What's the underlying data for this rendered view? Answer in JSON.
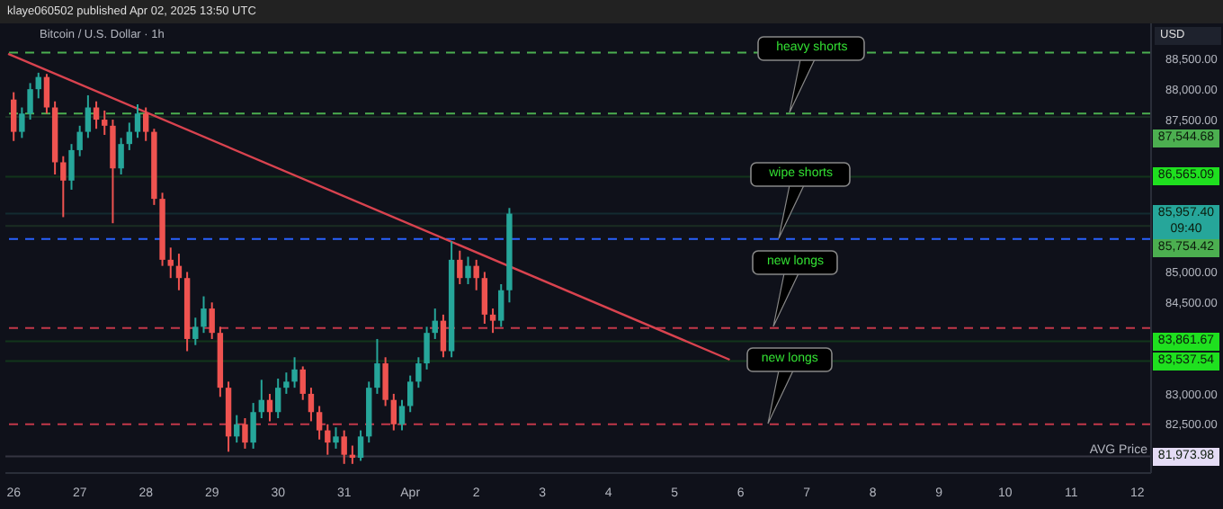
{
  "chart_data": {
    "type": "candlestick",
    "title": "Bitcoin / U.S. Dollar · 1h",
    "subtitle": "klaye060502 published Apr 02, 2025 13:50 UTC",
    "ylabel": "USD",
    "x": [
      "2025-03-26T00:00",
      "2025-03-26T03:00",
      "2025-03-26T06:00",
      "2025-03-26T09:00",
      "2025-03-26T12:00",
      "2025-03-26T15:00",
      "2025-03-26T18:00",
      "2025-03-26T21:00",
      "2025-03-27T00:00",
      "2025-03-27T03:00",
      "2025-03-27T06:00",
      "2025-03-27T09:00",
      "2025-03-27T12:00",
      "2025-03-27T15:00",
      "2025-03-27T18:00",
      "2025-03-27T21:00",
      "2025-03-28T00:00",
      "2025-03-28T03:00",
      "2025-03-28T06:00",
      "2025-03-28T09:00",
      "2025-03-28T12:00",
      "2025-03-28T15:00",
      "2025-03-28T18:00",
      "2025-03-28T21:00",
      "2025-03-29T00:00",
      "2025-03-29T03:00",
      "2025-03-29T06:00",
      "2025-03-29T09:00",
      "2025-03-29T12:00",
      "2025-03-29T15:00",
      "2025-03-29T18:00",
      "2025-03-29T21:00",
      "2025-03-30T00:00",
      "2025-03-30T03:00",
      "2025-03-30T06:00",
      "2025-03-30T09:00",
      "2025-03-30T12:00",
      "2025-03-30T15:00",
      "2025-03-30T18:00",
      "2025-03-30T21:00",
      "2025-03-31T00:00",
      "2025-03-31T03:00",
      "2025-03-31T06:00",
      "2025-03-31T09:00",
      "2025-03-31T12:00",
      "2025-03-31T15:00",
      "2025-03-31T18:00",
      "2025-03-31T21:00",
      "2025-04-01T00:00",
      "2025-04-01T03:00",
      "2025-04-01T06:00",
      "2025-04-01T09:00",
      "2025-04-01T12:00",
      "2025-04-01T15:00",
      "2025-04-01T18:00",
      "2025-04-01T21:00",
      "2025-04-02T00:00",
      "2025-04-02T03:00",
      "2025-04-02T06:00",
      "2025-04-02T09:00",
      "2025-04-02T12:00"
    ],
    "ohlc": [
      [
        87830,
        87950,
        87150,
        87300
      ],
      [
        87300,
        87700,
        87200,
        87600
      ],
      [
        87600,
        88100,
        87500,
        88000
      ],
      [
        88000,
        88270,
        87850,
        88200
      ],
      [
        88200,
        88250,
        87600,
        87700
      ],
      [
        87700,
        87800,
        86600,
        86800
      ],
      [
        86800,
        86900,
        85900,
        86500
      ],
      [
        86500,
        87100,
        86350,
        87000
      ],
      [
        87000,
        87400,
        86900,
        87300
      ],
      [
        87300,
        87900,
        87200,
        87700
      ],
      [
        87700,
        87800,
        87350,
        87500
      ],
      [
        87500,
        87650,
        87250,
        87400
      ],
      [
        87400,
        87500,
        85800,
        86700
      ],
      [
        86700,
        87200,
        86600,
        87100
      ],
      [
        87100,
        87450,
        87000,
        87300
      ],
      [
        87300,
        87750,
        87200,
        87600
      ],
      [
        87600,
        87700,
        87150,
        87300
      ],
      [
        87300,
        87350,
        86100,
        86200
      ],
      [
        86200,
        86300,
        85100,
        85200
      ],
      [
        85200,
        85400,
        84900,
        85100
      ],
      [
        85100,
        85300,
        84700,
        84900
      ],
      [
        84900,
        85000,
        83700,
        83900
      ],
      [
        83900,
        84250,
        83800,
        84100
      ],
      [
        84100,
        84600,
        84000,
        84400
      ],
      [
        84400,
        84500,
        83900,
        84000
      ],
      [
        84000,
        84100,
        82950,
        83100
      ],
      [
        83100,
        83200,
        82050,
        82300
      ],
      [
        82300,
        82650,
        82200,
        82500
      ],
      [
        82500,
        82600,
        82100,
        82200
      ],
      [
        82200,
        82850,
        82100,
        82700
      ],
      [
        82700,
        83230,
        82600,
        82900
      ],
      [
        82900,
        83000,
        82550,
        82700
      ],
      [
        82700,
        83250,
        82600,
        83100
      ],
      [
        83100,
        83350,
        83000,
        83200
      ],
      [
        83200,
        83600,
        83100,
        83400
      ],
      [
        83400,
        83450,
        82900,
        83000
      ],
      [
        83000,
        83100,
        82550,
        82700
      ],
      [
        82700,
        82800,
        82250,
        82400
      ],
      [
        82400,
        82500,
        82000,
        82200
      ],
      [
        82200,
        82450,
        82100,
        82300
      ],
      [
        82300,
        82400,
        81850,
        82000
      ],
      [
        82000,
        82150,
        81850,
        81950
      ],
      [
        81950,
        82400,
        81900,
        82300
      ],
      [
        82300,
        83200,
        82200,
        83100
      ],
      [
        83100,
        83900,
        83000,
        83500
      ],
      [
        83500,
        83600,
        82800,
        82900
      ],
      [
        82900,
        83000,
        82400,
        82500
      ],
      [
        82500,
        82900,
        82400,
        82800
      ],
      [
        82800,
        83300,
        82700,
        83200
      ],
      [
        83200,
        83600,
        83100,
        83500
      ],
      [
        83500,
        84100,
        83400,
        84000
      ],
      [
        84000,
        84400,
        83900,
        84200
      ],
      [
        84200,
        84300,
        83600,
        83700
      ],
      [
        83700,
        85500,
        83600,
        85200
      ],
      [
        85200,
        85350,
        84800,
        84900
      ],
      [
        84900,
        85250,
        84800,
        85100
      ],
      [
        85100,
        85200,
        84700,
        84900
      ],
      [
        84900,
        85000,
        84150,
        84300
      ],
      [
        84300,
        84400,
        84000,
        84200
      ],
      [
        84200,
        84800,
        84100,
        84700
      ],
      [
        84700,
        86050,
        84500,
        85957.4
      ]
    ],
    "series": [
      {
        "type": "line",
        "color": "#d9434f",
        "x": [
          "2025-03-25T22:00",
          "2025-04-05T20:00"
        ],
        "values": [
          88580,
          83560
        ]
      }
    ],
    "xlim": [
      "2025-03-25T21:00",
      "2025-04-12T05:00"
    ],
    "xticks": [
      {
        "value": "2025-03-26T00:00",
        "label": "26"
      },
      {
        "value": "2025-03-27T00:00",
        "label": "27"
      },
      {
        "value": "2025-03-28T00:00",
        "label": "28"
      },
      {
        "value": "2025-03-29T00:00",
        "label": "29"
      },
      {
        "value": "2025-03-30T00:00",
        "label": "30"
      },
      {
        "value": "2025-03-31T00:00",
        "label": "31"
      },
      {
        "value": "2025-04-01T00:00",
        "label": "Apr"
      },
      {
        "value": "2025-04-02T00:00",
        "label": "2"
      },
      {
        "value": "2025-04-03T00:00",
        "label": "3"
      },
      {
        "value": "2025-04-04T00:00",
        "label": "4"
      },
      {
        "value": "2025-04-05T00:00",
        "label": "5"
      },
      {
        "value": "2025-04-06T00:00",
        "label": "6"
      },
      {
        "value": "2025-04-07T00:00",
        "label": "7"
      },
      {
        "value": "2025-04-08T00:00",
        "label": "8"
      },
      {
        "value": "2025-04-09T00:00",
        "label": "9"
      },
      {
        "value": "2025-04-10T00:00",
        "label": "10"
      },
      {
        "value": "2025-04-11T00:00",
        "label": "11"
      },
      {
        "value": "2025-04-12T00:00",
        "label": "12"
      }
    ],
    "ylim": [
      81700,
      89080
    ],
    "yticks": [
      {
        "value": 82500,
        "label": "82,500.00"
      },
      {
        "value": 83000,
        "label": "83,000.00"
      },
      {
        "value": 84500,
        "label": "84,500.00"
      },
      {
        "value": 85000,
        "label": "85,000.00"
      },
      {
        "value": 87500,
        "label": "87,500.00"
      },
      {
        "value": 88000,
        "label": "88,000.00"
      },
      {
        "value": 88500,
        "label": "88,500.00"
      }
    ],
    "ref_lines": [
      {
        "axis": "y",
        "value": 88600,
        "color": "#4caf50",
        "line_style": "dashed"
      },
      {
        "axis": "y",
        "value": 87600,
        "color": "#4caf50",
        "line_style": "dashed"
      },
      {
        "axis": "y",
        "value": 85540,
        "color": "#2962ff",
        "line_style": "dashed"
      },
      {
        "axis": "y",
        "value": 84080,
        "color": "#c2384a",
        "line_style": "dashed"
      },
      {
        "axis": "y",
        "value": 82500,
        "color": "#c2384a",
        "line_style": "dashed"
      },
      {
        "axis": "y",
        "value": 87544.68,
        "color": "#4caf50",
        "line_style": "solid",
        "label": "87,544.68"
      },
      {
        "axis": "y",
        "value": 86565.09,
        "color": "#1fe01f",
        "line_style": "solid",
        "label": "86,565.09"
      },
      {
        "axis": "y",
        "value": 85957.4,
        "color": "#26a69a",
        "line_style": "solid",
        "label": "85,957.40\n09:40"
      },
      {
        "axis": "y",
        "value": 85754.42,
        "color": "#4caf50",
        "line_style": "solid",
        "label": "85,754.42"
      },
      {
        "axis": "y",
        "value": 83861.67,
        "color": "#1fe01f",
        "line_style": "solid",
        "label": "83,861.67"
      },
      {
        "axis": "y",
        "value": 83537.54,
        "color": "#1fe01f",
        "line_style": "solid",
        "label": "83,537.54"
      },
      {
        "axis": "y",
        "value": 81973.98,
        "color": "#e4dcf5",
        "line_style": "solid",
        "label": "81,973.98"
      }
    ],
    "annotations": [
      {
        "text": "heavy shorts",
        "x": "2025-04-06T18:00",
        "y": 87600
      },
      {
        "text": "wipe shorts",
        "x": "2025-04-06T14:00",
        "y": 85540
      },
      {
        "text": "new longs",
        "x": "2025-04-06T12:00",
        "y": 84080
      },
      {
        "text": "new longs",
        "x": "2025-04-06T10:00",
        "y": 82500
      },
      "AVG Price"
    ]
  }
}
